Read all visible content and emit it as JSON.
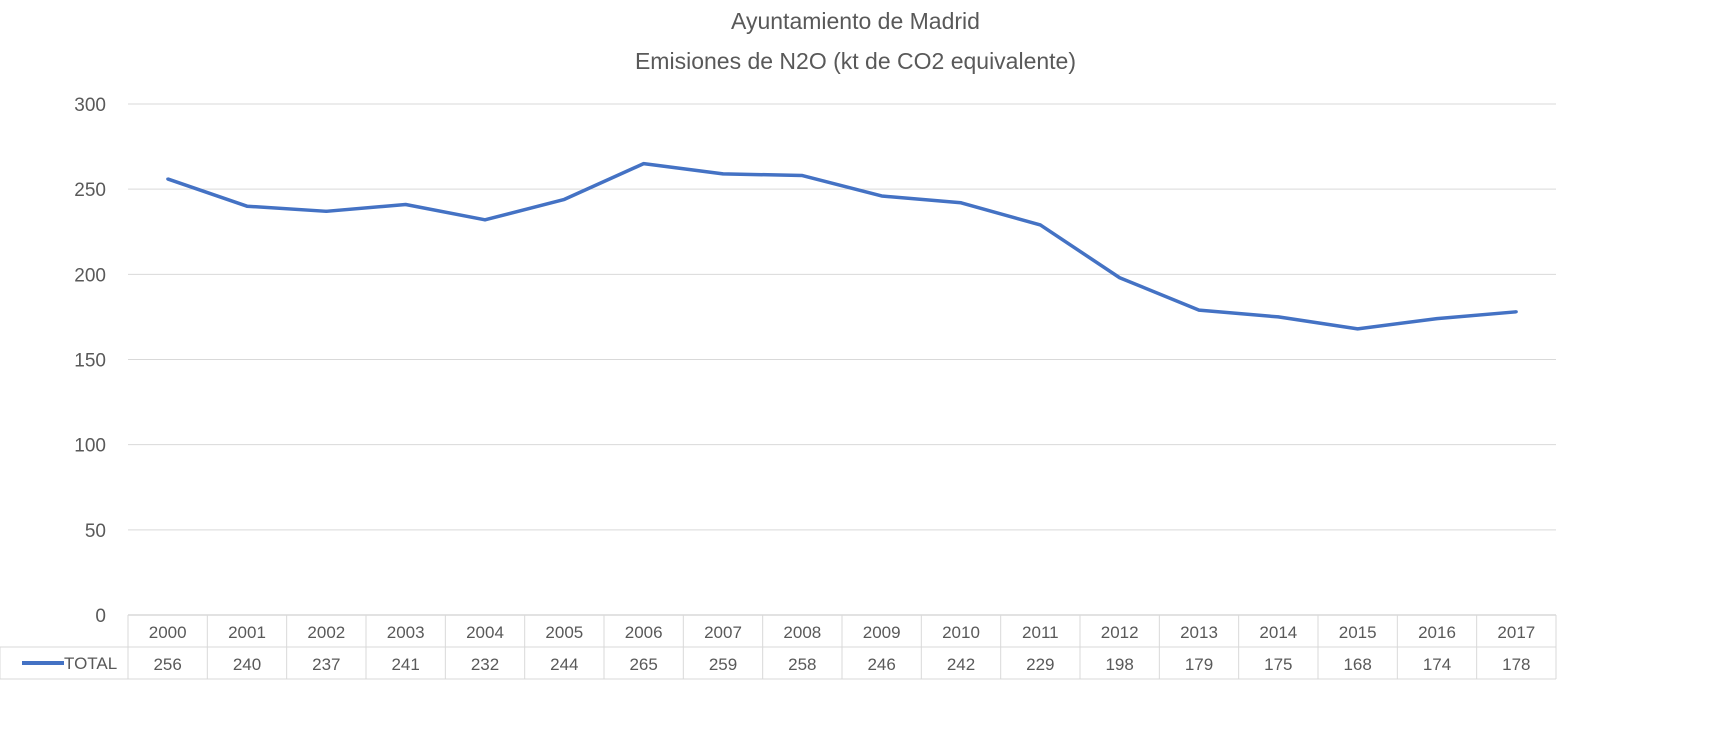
{
  "chart_data": {
    "type": "line",
    "title": "Ayuntamiento de Madrid",
    "subtitle": "Emisiones de N2O (kt de CO2 equivalente)",
    "categories": [
      "2000",
      "2001",
      "2002",
      "2003",
      "2004",
      "2005",
      "2006",
      "2007",
      "2008",
      "2009",
      "2010",
      "2011",
      "2012",
      "2013",
      "2014",
      "2015",
      "2016",
      "2017"
    ],
    "series": [
      {
        "name": "TOTAL",
        "values": [
          256,
          240,
          237,
          241,
          232,
          244,
          265,
          259,
          258,
          246,
          242,
          229,
          198,
          179,
          175,
          168,
          174,
          178
        ],
        "color": "#4472c4"
      }
    ],
    "yticks": [
      "0",
      "50",
      "100",
      "150",
      "200",
      "250",
      "300"
    ],
    "ylim": [
      0,
      300
    ],
    "grid": true,
    "legend": "data-table",
    "data_table": true
  }
}
